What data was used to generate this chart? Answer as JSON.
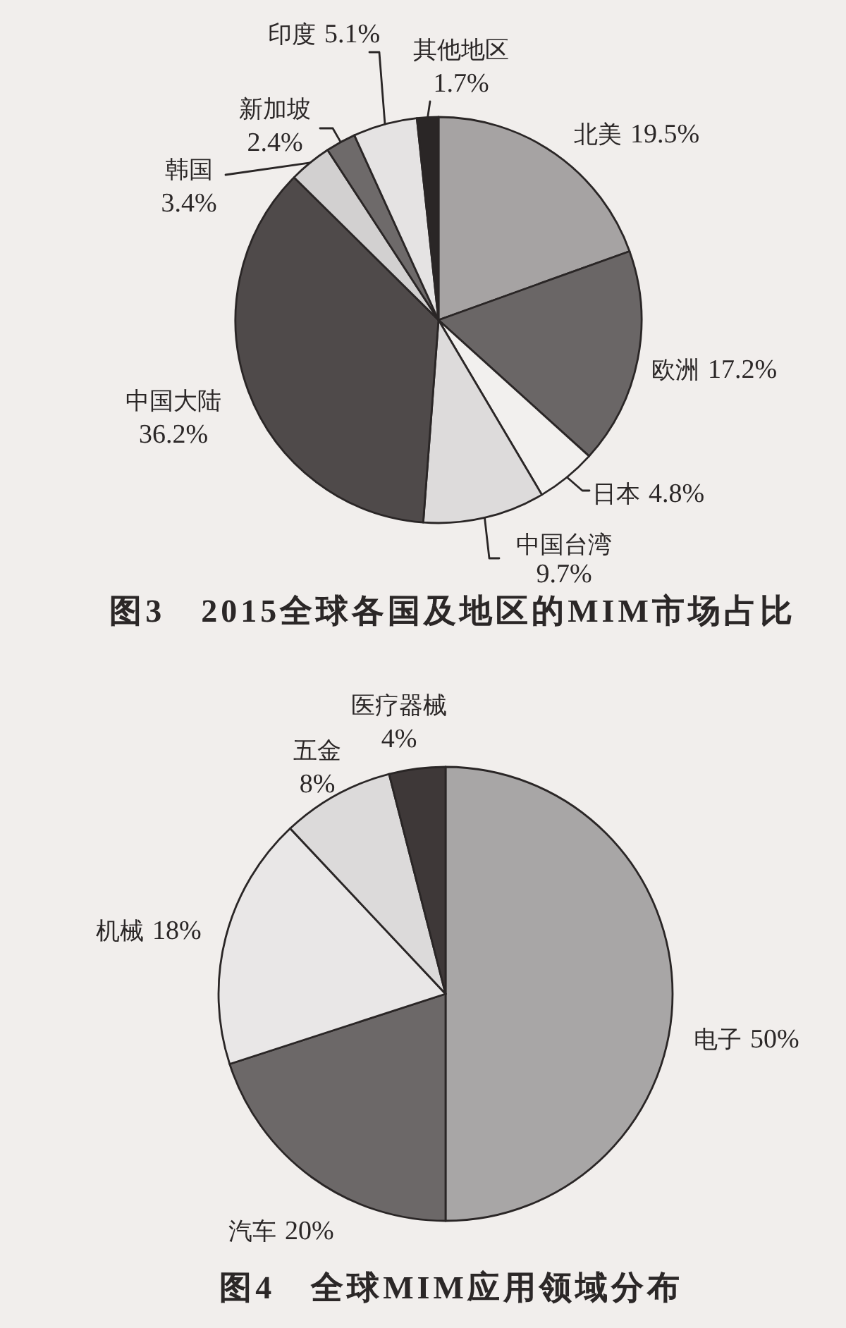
{
  "chart_data": [
    {
      "type": "pie",
      "title": "图3　2015全球各国及地区的MIM市场占比",
      "categories": [
        "北美",
        "欧洲",
        "日本",
        "中国台湾",
        "中国大陆",
        "韩国",
        "新加坡",
        "印度",
        "其他地区"
      ],
      "values": [
        19.5,
        17.2,
        4.8,
        9.7,
        36.2,
        3.4,
        2.4,
        5.1,
        1.7
      ],
      "value_labels": [
        "19.5%",
        "17.2%",
        "4.8%",
        "9.7%",
        "36.2%",
        "3.4%",
        "2.4%",
        "5.1%",
        "1.7%"
      ],
      "colors": [
        "#a6a3a3",
        "#6a6666",
        "#f2f0ee",
        "#dddbdb",
        "#4f4a4a",
        "#d2d0d0",
        "#6e6a6a",
        "#e5e3e3",
        "#2a2626"
      ]
    },
    {
      "type": "pie",
      "title": "图4　全球MIM应用领域分布",
      "categories": [
        "电子",
        "汽车",
        "机械",
        "五金",
        "医疗器械"
      ],
      "values": [
        50,
        20,
        18,
        8,
        4
      ],
      "value_labels": [
        "50%",
        "20%",
        "18%",
        "8%",
        "4%"
      ],
      "colors": [
        "#a8a6a6",
        "#6c6868",
        "#e9e7e7",
        "#dcdada",
        "#3e3838"
      ]
    }
  ]
}
